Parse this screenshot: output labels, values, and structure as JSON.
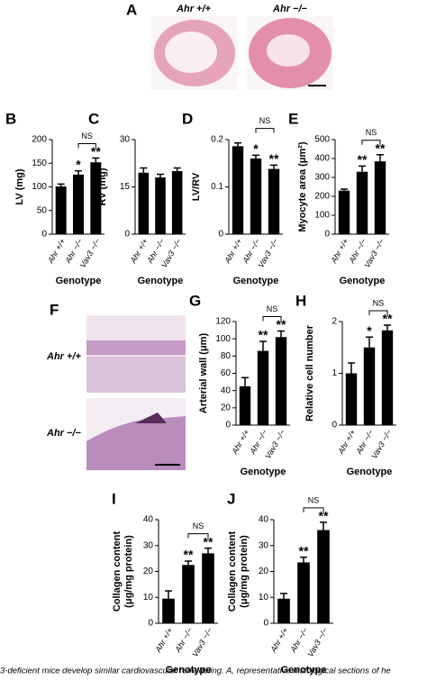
{
  "figure": {
    "panel_a": "A",
    "panel_f": "F",
    "a_left": "Ahr +/+",
    "a_right": "Ahr −/−",
    "f_top": "Ahr +/+",
    "f_bottom": "Ahr −/−",
    "caption": "3-deficient mice develop similar cardiovascular remodeling. A, representative histological sections of he"
  },
  "chart_data": [
    {
      "type": "bar",
      "label": "B",
      "ylabel": "LV (mg)",
      "xlabel": "Genotype",
      "categories": [
        "Ahr +/+",
        "Ahr −/−",
        "Vav3 −/−"
      ],
      "values": [
        101,
        126,
        152
      ],
      "errors": [
        5,
        8,
        9
      ],
      "bar_labels": [
        null,
        "*",
        "**"
      ],
      "bracket": "NS",
      "color": "#000000",
      "ylim": [
        0,
        200
      ],
      "yticks": [
        0,
        50,
        100,
        150,
        200
      ]
    },
    {
      "type": "bar",
      "label": "C",
      "ylabel": "RV (mg)",
      "xlabel": "Genotype",
      "categories": [
        "Ahr +/+",
        "Ahr −/−",
        "Vav3 −/−"
      ],
      "values": [
        19.5,
        18,
        20
      ],
      "errors": [
        1.5,
        1,
        1
      ],
      "color": "#000000",
      "ylim": [
        0,
        30
      ],
      "yticks": [
        0,
        15,
        30
      ]
    },
    {
      "type": "bar",
      "label": "D",
      "ylabel": "LV/RV",
      "xlabel": "Genotype",
      "categories": [
        "Ahr +/+",
        "Ahr −/−",
        "Vav3 −/−"
      ],
      "values": [
        0.186,
        0.16,
        0.138
      ],
      "errors": [
        0.007,
        0.007,
        0.008
      ],
      "bar_labels": [
        null,
        "*",
        "**"
      ],
      "bracket": "NS",
      "color": "#000000",
      "ylim": [
        0,
        0.2
      ],
      "yticks": [
        0,
        0.1,
        0.2
      ]
    },
    {
      "type": "bar",
      "label": "E",
      "ylabel": "Myocyte area (μm²)",
      "xlabel": "Genotype",
      "categories": [
        "Ahr +/+",
        "Ahr −/−",
        "Vav3 −/−"
      ],
      "values": [
        230,
        330,
        385
      ],
      "errors": [
        8,
        30,
        35
      ],
      "bar_labels": [
        null,
        "**",
        "**"
      ],
      "bracket": "NS",
      "color": "#000000",
      "ylim": [
        0,
        500
      ],
      "yticks": [
        0,
        100,
        200,
        300,
        400,
        500
      ]
    },
    {
      "type": "bar",
      "label": "G",
      "ylabel": "Arterial wall (μm)",
      "xlabel": "Genotype",
      "categories": [
        "Ahr +/+",
        "Ahr −/−",
        "Vav3 −/−"
      ],
      "values": [
        45,
        86,
        102
      ],
      "errors": [
        10,
        11,
        7
      ],
      "bar_labels": [
        null,
        "**",
        "**"
      ],
      "bracket": "NS",
      "color": "#000000",
      "ylim": [
        0,
        120
      ],
      "yticks": [
        0,
        20,
        40,
        60,
        80,
        100,
        120
      ]
    },
    {
      "type": "bar",
      "label": "H",
      "ylabel": "Relative cell number",
      "xlabel": "Genotype",
      "categories": [
        "Ahr +/+",
        "Ahr −/−",
        "Vav3 −/−"
      ],
      "values": [
        1.0,
        1.5,
        1.83
      ],
      "errors": [
        0.2,
        0.2,
        0.1
      ],
      "bar_labels": [
        null,
        "*",
        "**"
      ],
      "bracket": "NS",
      "color": "#000000",
      "ylim": [
        0,
        2
      ],
      "yticks": [
        0,
        1,
        2
      ]
    },
    {
      "type": "bar",
      "label": "I",
      "ylabel": [
        "Collagen content",
        "(μg/mg protein)"
      ],
      "xlabel": "Genotype",
      "categories": [
        "Ahr +/+",
        "Ahr −/−",
        "Vav3 −/−"
      ],
      "values": [
        9.5,
        22.5,
        27
      ],
      "errors": [
        3,
        1.5,
        2
      ],
      "bar_labels": [
        null,
        "**",
        "**"
      ],
      "bracket": "NS",
      "color": "#000000",
      "ylim": [
        0,
        40
      ],
      "yticks": [
        0,
        10,
        20,
        30,
        40
      ]
    },
    {
      "type": "bar",
      "label": "J",
      "ylabel": [
        "Collagen content",
        "(μg/mg protein)"
      ],
      "xlabel": "Genotype",
      "categories": [
        "Ahr +/+",
        "Ahr −/−",
        "Vav3 −/−"
      ],
      "values": [
        9.5,
        23.5,
        36
      ],
      "errors": [
        2,
        2,
        3
      ],
      "bar_labels": [
        null,
        "**",
        "**"
      ],
      "bracket": "NS",
      "color": "#000000",
      "ylim": [
        0,
        40
      ],
      "yticks": [
        0,
        10,
        20,
        30,
        40
      ]
    }
  ]
}
